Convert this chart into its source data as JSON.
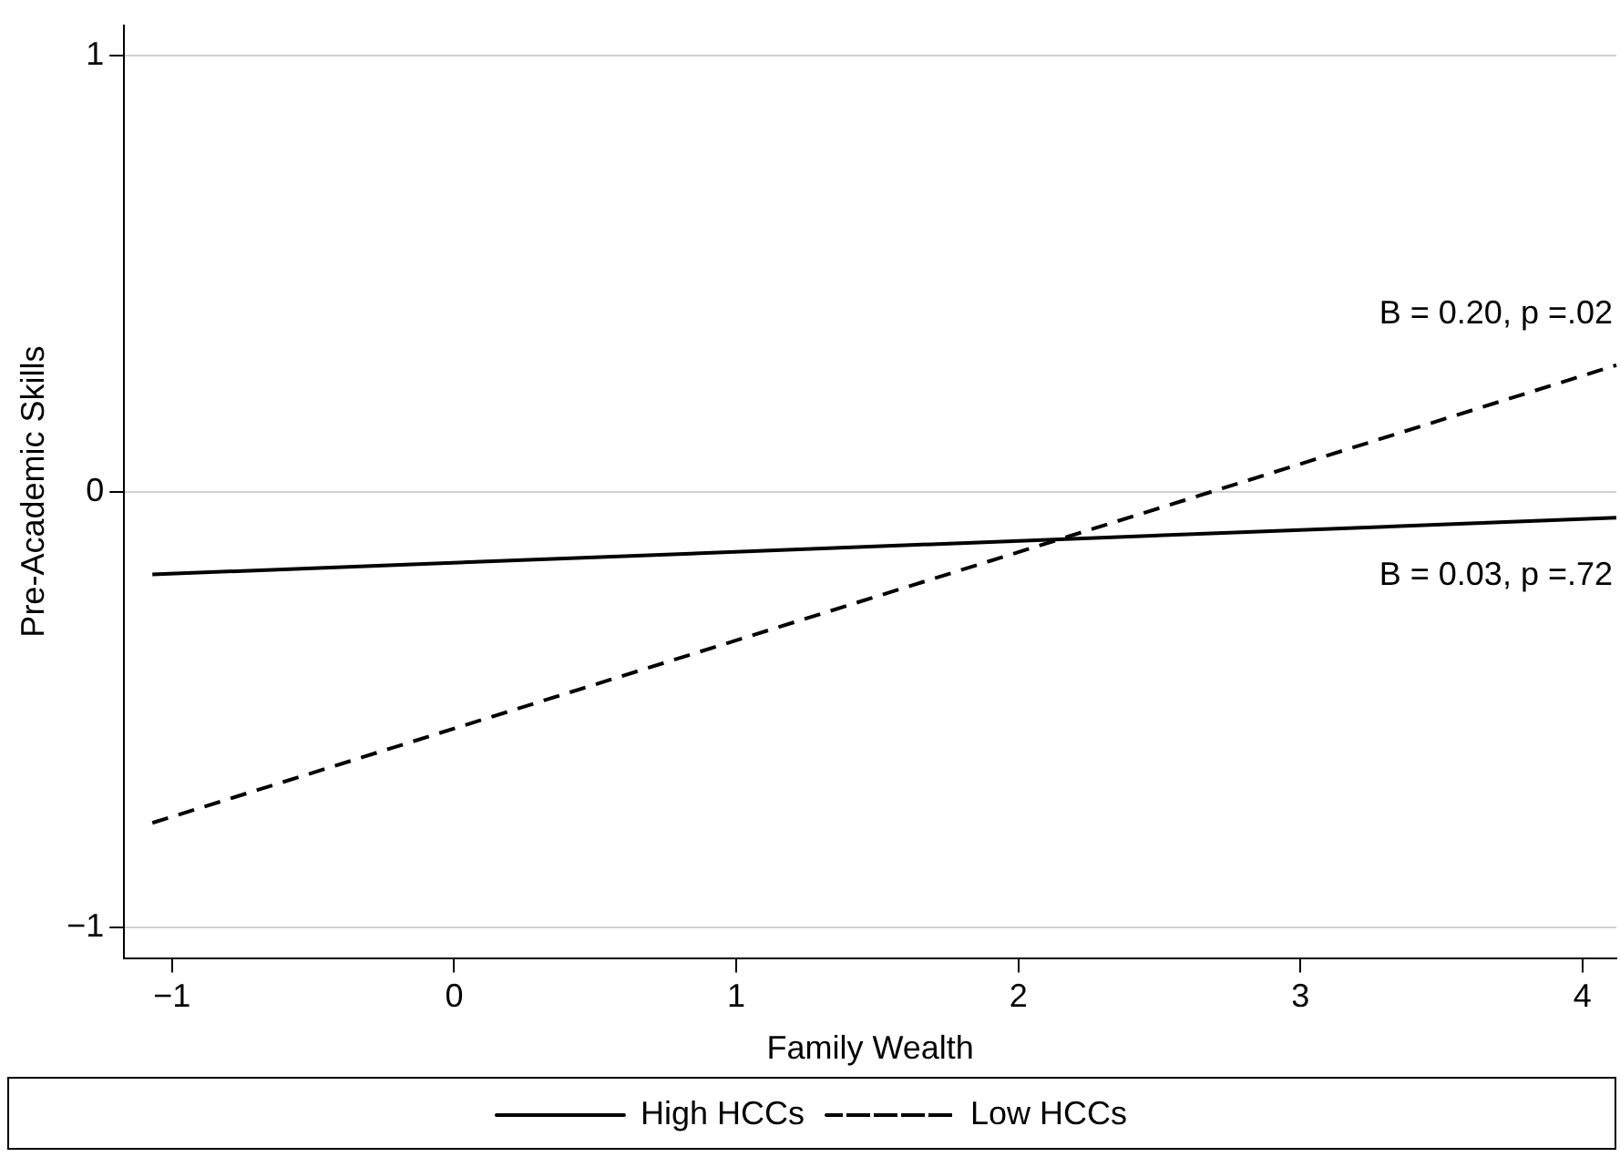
{
  "chart_data": {
    "type": "line",
    "xlabel": "Family Wealth",
    "ylabel": "Pre-Academic Skills",
    "xlim": [
      -1.17,
      4.12
    ],
    "xticks": [
      -1,
      0,
      1,
      2,
      3,
      4
    ],
    "ylim": [
      -1.07,
      1.07
    ],
    "yticks": [
      -1,
      0,
      1
    ],
    "grid": "y",
    "legend": "bottom",
    "marker": "none",
    "x": [
      -1.07,
      4.12
    ],
    "series": [
      {
        "name": "High HCCs",
        "color": "#000000",
        "values": [
          -0.19,
          -0.06
        ],
        "line_style": "solid"
      },
      {
        "name": "Low HCCs",
        "color": "#000000",
        "values": [
          -0.76,
          0.29
        ],
        "line_style": "dashed"
      }
    ],
    "annotations": [
      "B = 0.20, p =.02",
      "B = 0.03, p =.72"
    ]
  }
}
